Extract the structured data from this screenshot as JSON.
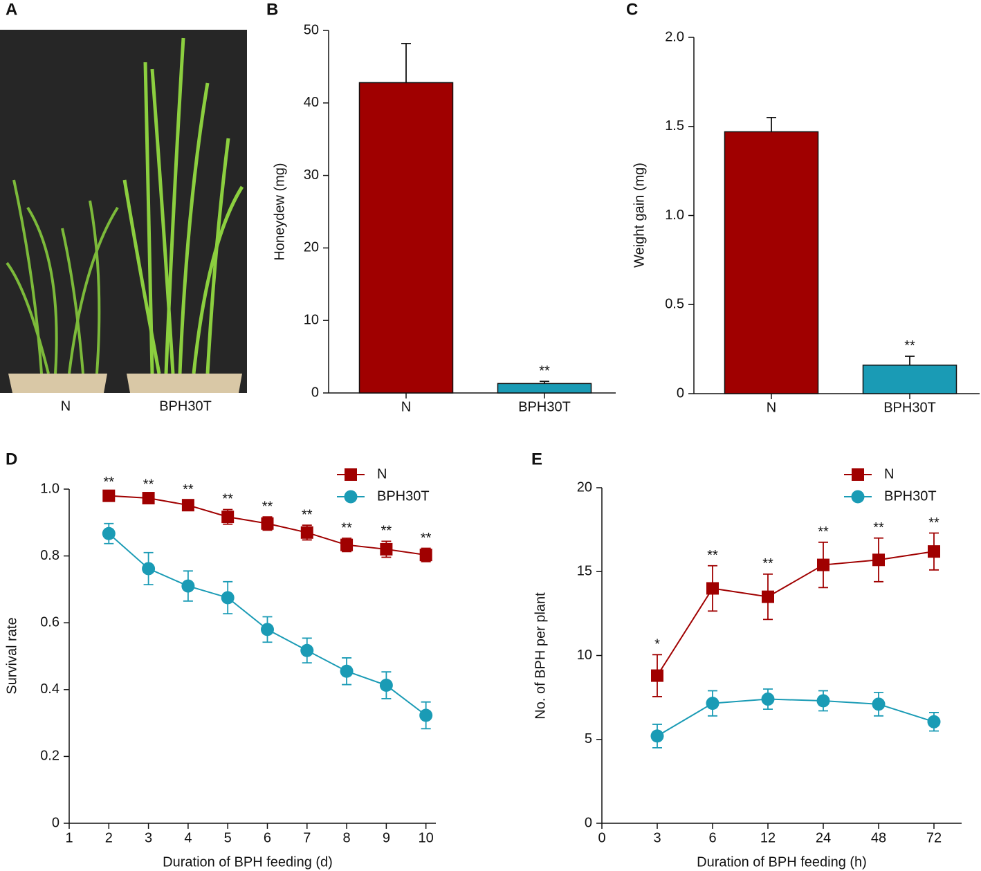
{
  "chart_data": [
    {
      "type": "photo",
      "panel": "A",
      "categories": [
        "N",
        "BPH30T"
      ]
    },
    {
      "type": "bar",
      "panel": "B",
      "ylabel": "Honeydew (mg)",
      "categories": [
        "N",
        "BPH30T"
      ],
      "values": [
        42.8,
        1.3
      ],
      "errors": [
        5.4,
        0.3
      ],
      "colors": [
        "#a00000",
        "#1a9bb5"
      ],
      "annotations": [
        {
          "category": "BPH30T",
          "text": "**"
        }
      ],
      "ylim": [
        0,
        50
      ],
      "yticks": [
        0,
        10,
        20,
        30,
        40,
        50
      ]
    },
    {
      "type": "bar",
      "panel": "C",
      "ylabel": "Weight gain (mg)",
      "categories": [
        "N",
        "BPH30T"
      ],
      "values": [
        1.47,
        0.16
      ],
      "errors": [
        0.08,
        0.05
      ],
      "colors": [
        "#a00000",
        "#1a9bb5"
      ],
      "annotations": [
        {
          "category": "BPH30T",
          "text": "**"
        }
      ],
      "ylim": [
        0,
        2
      ],
      "yticks": [
        0,
        0.5,
        {
          "value": 1,
          "label": "1.0"
        },
        1.5,
        {
          "value": 2,
          "label": "2.0"
        }
      ]
    },
    {
      "type": "line",
      "panel": "D",
      "ylabel": "Survival rate",
      "xlabel": "Duration of BPH feeding (d)",
      "x": [
        2,
        3,
        4,
        5,
        6,
        7,
        8,
        9,
        10
      ],
      "series": [
        {
          "name": "N",
          "color": "#a00000",
          "marker": "square",
          "values": [
            0.98,
            0.973,
            0.952,
            0.917,
            0.897,
            0.87,
            0.833,
            0.82,
            0.803
          ],
          "errors": [
            0.01,
            0.01,
            0.015,
            0.022,
            0.02,
            0.022,
            0.02,
            0.024,
            0.02
          ],
          "significance": [
            "**",
            "**",
            "**",
            "**",
            "**",
            "**",
            "**",
            "**",
            "**"
          ]
        },
        {
          "name": "BPH30T",
          "color": "#1a9bb5",
          "marker": "circle",
          "values": [
            0.867,
            0.762,
            0.71,
            0.675,
            0.58,
            0.517,
            0.455,
            0.413,
            0.323
          ],
          "errors": [
            0.03,
            0.048,
            0.045,
            0.048,
            0.038,
            0.037,
            0.04,
            0.04,
            0.04
          ]
        }
      ],
      "xlim": [
        1,
        10.25
      ],
      "xticks": [
        1,
        2,
        3,
        4,
        5,
        6,
        7,
        8,
        9,
        10
      ],
      "ylim": [
        0,
        1
      ],
      "yticks": [
        0,
        0.2,
        0.4,
        0.6,
        0.8,
        {
          "value": 1,
          "label": "1.0"
        }
      ]
    },
    {
      "type": "line",
      "panel": "E",
      "ylabel": "No. of BPH per plant",
      "xlabel": "Duration of BPH feeding (h)",
      "categories": [
        "0",
        "3",
        "6",
        "12",
        "24",
        "48",
        "72"
      ],
      "series": [
        {
          "name": "N",
          "color": "#a00000",
          "marker": "square",
          "values": [
            null,
            8.8,
            14,
            13.5,
            15.4,
            15.7,
            16.2
          ],
          "errors": [
            null,
            1.25,
            1.35,
            1.35,
            1.35,
            1.3,
            1.1
          ],
          "significance": [
            null,
            "*",
            "**",
            "**",
            "**",
            "**",
            "**"
          ]
        },
        {
          "name": "BPH30T",
          "color": "#1a9bb5",
          "marker": "circle",
          "values": [
            null,
            5.2,
            7.15,
            7.4,
            7.3,
            7.1,
            6.05
          ],
          "errors": [
            null,
            0.7,
            0.75,
            0.6,
            0.6,
            0.7,
            0.55
          ]
        }
      ],
      "ylim": [
        0,
        20
      ],
      "yticks": [
        0,
        5,
        10,
        15,
        20
      ]
    }
  ]
}
